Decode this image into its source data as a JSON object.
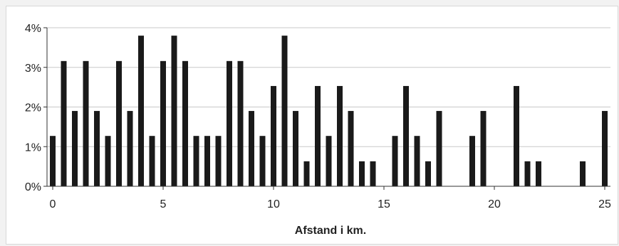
{
  "chart_data": {
    "type": "bar",
    "xlabel": "Afstand i km.",
    "ylabel": "",
    "xlim": [
      0,
      25
    ],
    "ylim": [
      0,
      4
    ],
    "x_ticks": [
      "0",
      "5",
      "10",
      "15",
      "20",
      "25"
    ],
    "y_ticks": [
      "0%",
      "1%",
      "2%",
      "3%",
      "4%"
    ],
    "grid": true,
    "bar_color": "#1a1a1a",
    "x": [
      0,
      0.5,
      1,
      1.5,
      2,
      2.5,
      3,
      3.5,
      4,
      4.5,
      5,
      5.5,
      6,
      6.5,
      7,
      7.5,
      8,
      8.5,
      9,
      9.5,
      10,
      10.5,
      11,
      11.5,
      12,
      12.5,
      13,
      13.5,
      14,
      14.5,
      15,
      15.5,
      16,
      16.5,
      17,
      17.5,
      18,
      18.5,
      19,
      19.5,
      20,
      20.5,
      21,
      21.5,
      22,
      22.5,
      23,
      23.5,
      24,
      24.5,
      25
    ],
    "values": [
      1.27,
      3.16,
      1.9,
      3.16,
      1.9,
      1.27,
      3.16,
      1.9,
      3.8,
      1.27,
      3.16,
      3.8,
      3.16,
      1.27,
      1.27,
      1.27,
      3.16,
      3.16,
      1.9,
      1.27,
      2.53,
      3.8,
      1.9,
      0.63,
      2.53,
      1.27,
      2.53,
      1.9,
      0.63,
      0.63,
      0,
      1.27,
      2.53,
      1.27,
      0.63,
      1.9,
      0,
      0,
      1.27,
      1.9,
      0,
      0,
      2.53,
      0.63,
      0.63,
      0,
      0,
      0,
      0.63,
      0,
      1.9
    ]
  }
}
